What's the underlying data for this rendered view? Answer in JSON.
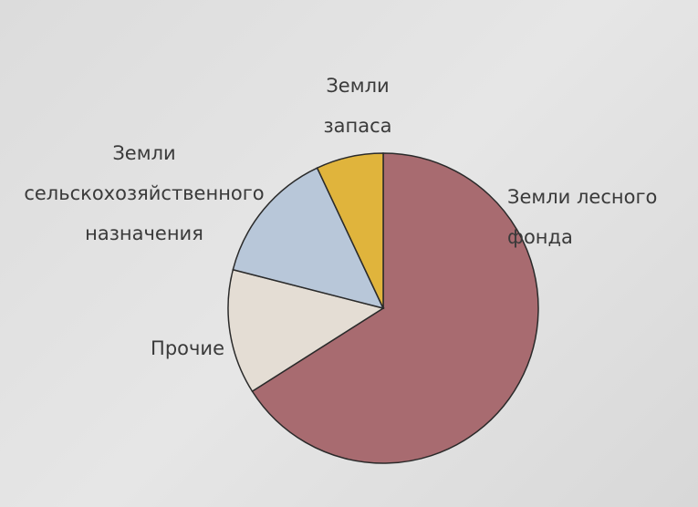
{
  "chart_data": {
    "type": "pie",
    "categories": [
      "Земли лесного фонда",
      "Прочие",
      "Земли сельскохозяйственного назначения",
      "Земли запаса"
    ],
    "values": [
      66,
      13,
      14,
      7
    ],
    "colors": [
      "#a86b70",
      "#e4ddd4",
      "#b8c7d9",
      "#e0b43c"
    ]
  }
}
